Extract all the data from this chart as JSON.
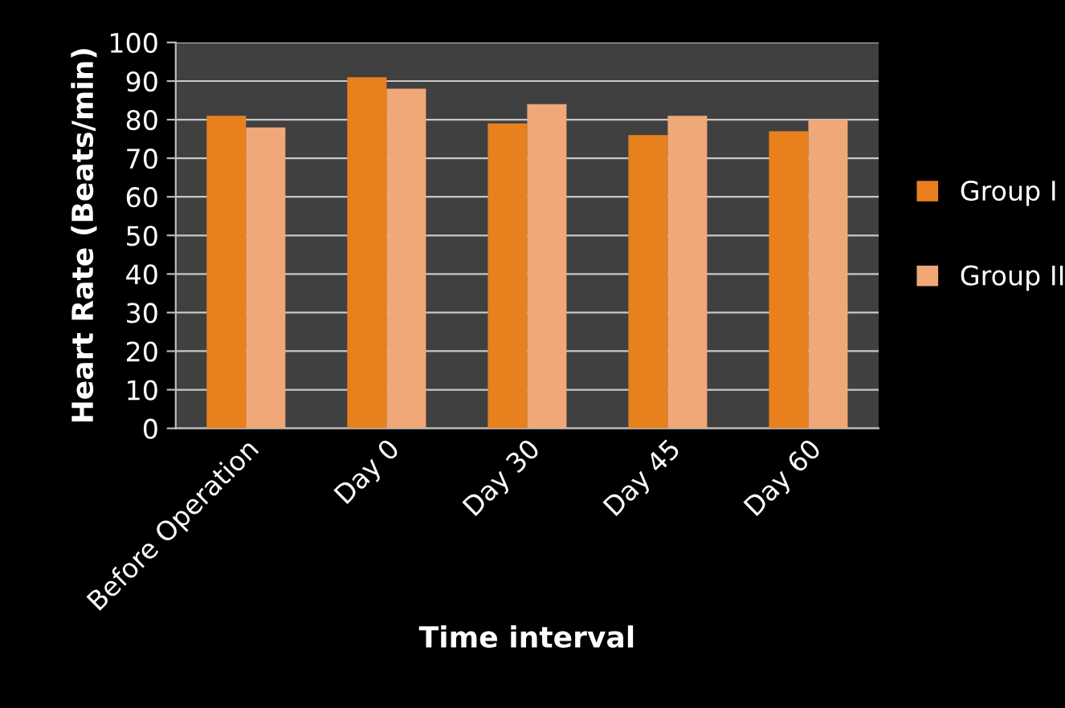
{
  "chart_data": {
    "type": "bar",
    "xlabel": "Time interval",
    "ylabel": "Heart Rate (Beats/min)",
    "categories": [
      "Before Operation",
      "Day 0",
      "Day 30",
      "Day 45",
      "Day 60"
    ],
    "series": [
      {
        "name": "Group I",
        "color": "#e8801e",
        "values": [
          81,
          91,
          79,
          76,
          77
        ]
      },
      {
        "name": "Group II",
        "color": "#f0a878",
        "values": [
          78,
          88,
          84,
          81,
          80
        ]
      }
    ],
    "ylim": [
      0,
      100
    ],
    "yticks": [
      0,
      10,
      20,
      30,
      40,
      50,
      60,
      70,
      80,
      90,
      100
    ],
    "grid": "y",
    "legend": "right"
  }
}
